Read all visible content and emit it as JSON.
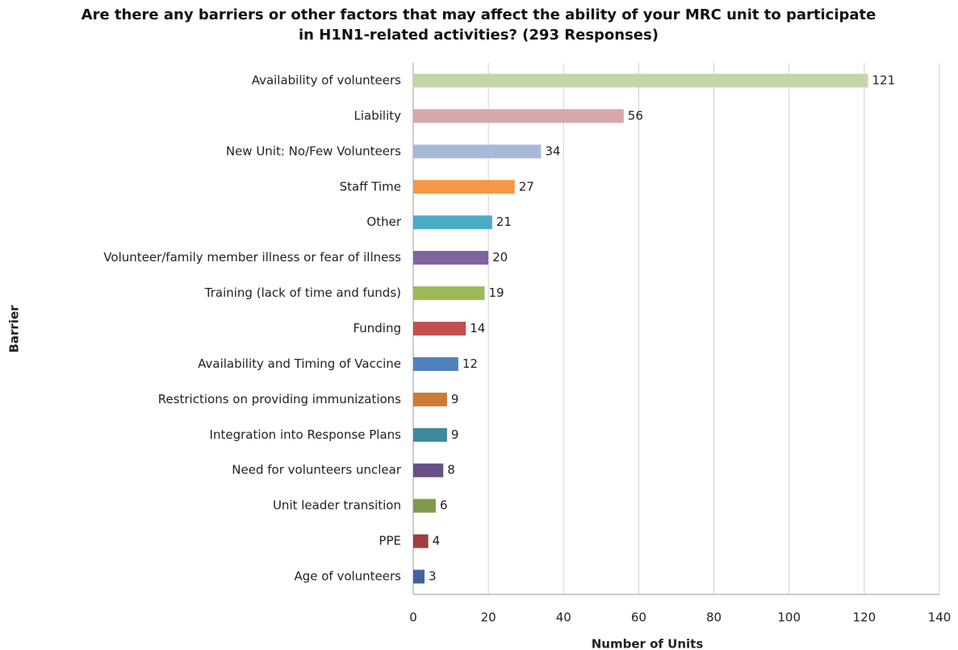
{
  "chart_data": {
    "type": "bar",
    "orientation": "horizontal",
    "title": "Are there any barriers or other factors that may affect the ability of your MRC unit to participate in H1N1-related activities? (293 Responses)",
    "xlabel": "Number of Units",
    "ylabel": "Barrier",
    "categories": [
      "Availability of volunteers",
      "Liability",
      "New Unit: No/Few Volunteers",
      "Staff Time",
      "Other",
      "Volunteer/family member illness or fear of illness",
      "Training (lack of time and funds)",
      "Funding",
      "Availability and Timing of Vaccine",
      "Restrictions on providing immunizations",
      "Integration into Response Plans",
      "Need for volunteers unclear",
      "Unit leader transition",
      "PPE",
      "Age of volunteers"
    ],
    "values": [
      121,
      56,
      34,
      27,
      21,
      20,
      19,
      14,
      12,
      9,
      9,
      8,
      6,
      4,
      3
    ],
    "colors": [
      "#c3d6a9",
      "#d9a8a8",
      "#a9b8d6",
      "#f79646",
      "#4bacc6",
      "#8064a2",
      "#9bbb59",
      "#c0504d",
      "#4f81bd",
      "#cc7a35",
      "#3b8a9e",
      "#6a4f86",
      "#7f9a48",
      "#9c3f3d",
      "#3f64a0"
    ],
    "xlim": [
      0,
      140
    ],
    "xticks": [
      0,
      20,
      40,
      60,
      80,
      100,
      120,
      140
    ],
    "grid": true
  }
}
